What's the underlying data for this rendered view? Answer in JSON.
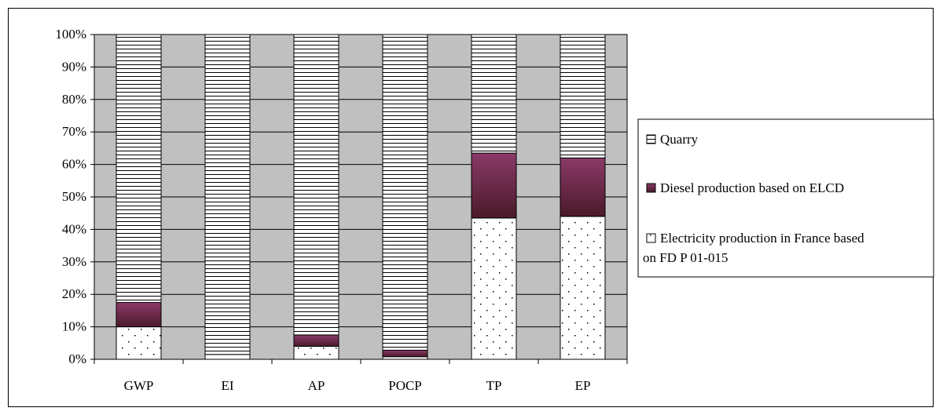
{
  "chart_data": {
    "type": "bar",
    "stacked": true,
    "percent_stacked": true,
    "categories": [
      "GWP",
      "EI",
      "AP",
      "POCP",
      "TP",
      "EP"
    ],
    "series": [
      {
        "name": "Electricity production in France based on FD P 01-015",
        "values": [
          10,
          1.5,
          4,
          0.8,
          43.5,
          44
        ],
        "pattern": "dots"
      },
      {
        "name": "Diesel production based on ELCD",
        "values": [
          7.5,
          0,
          3.5,
          2,
          20,
          18
        ],
        "pattern": "maroon-gradient"
      },
      {
        "name": "Quarry",
        "values": [
          82.5,
          98.5,
          92.5,
          97.2,
          36.5,
          38
        ],
        "pattern": "horizontal-lines"
      }
    ],
    "y_ticks": [
      "0%",
      "10%",
      "20%",
      "30%",
      "40%",
      "50%",
      "60%",
      "70%",
      "80%",
      "90%",
      "100%"
    ],
    "ylim": [
      0,
      100
    ],
    "grid": true,
    "legend_position": "right",
    "colors": {
      "plot_background": "#c0c0c0",
      "diesel_dark": "#4a1a2a",
      "diesel_light": "#8b3a68",
      "border": "#000000"
    }
  },
  "legend": {
    "quarry": "Quarry",
    "diesel": "Diesel production based on ELCD",
    "electricity_line1": "Electricity production in France based",
    "electricity_line2": "on FD P 01-015"
  }
}
